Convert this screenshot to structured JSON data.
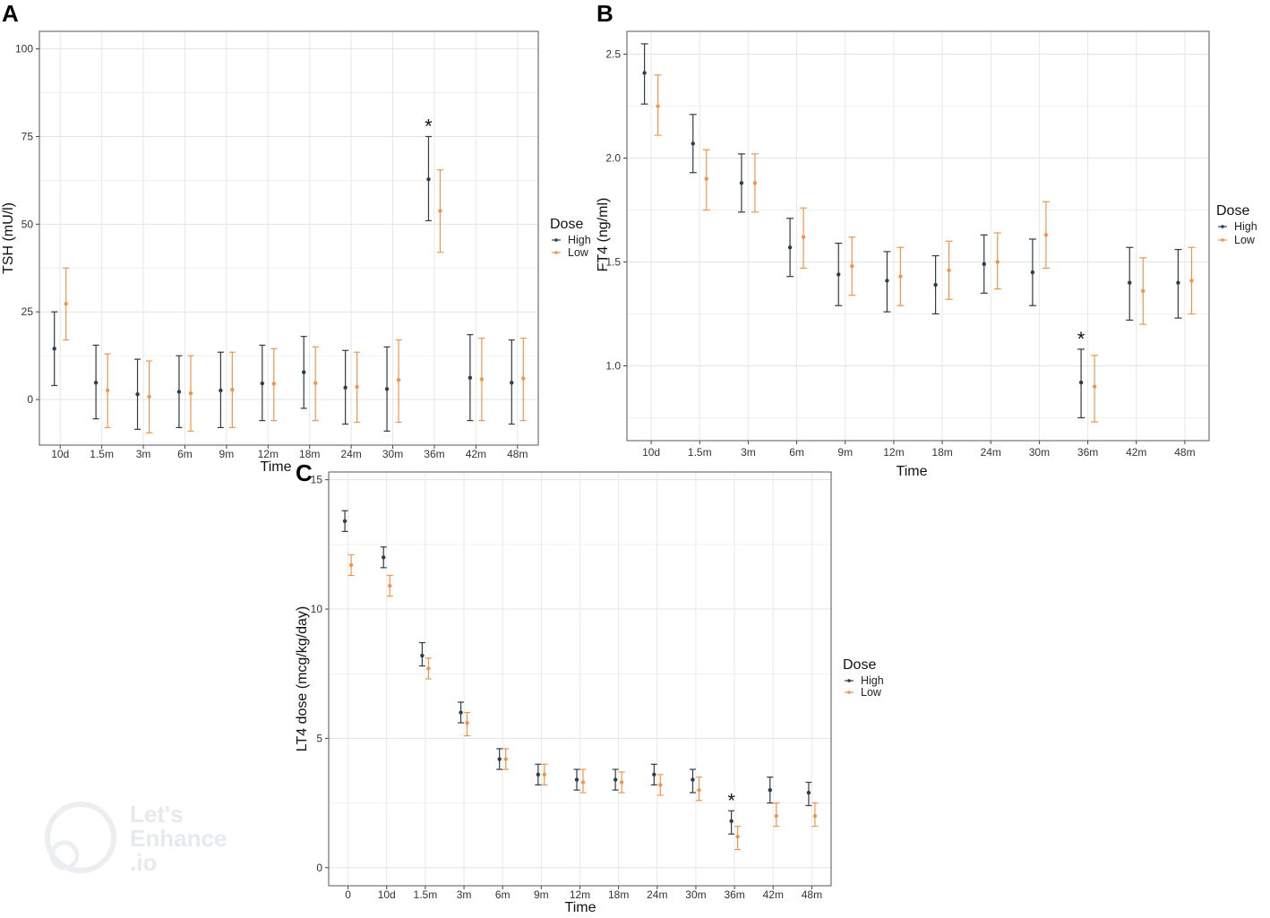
{
  "watermark": {
    "line1": "Let's",
    "line2": "Enhance",
    "line3": ".io"
  },
  "chart_data": [
    {
      "panel": "A",
      "type": "errorbar",
      "xlabel": "Time",
      "ylabel": "TSH (mU/l)",
      "ylim": [
        -13,
        105
      ],
      "yticks": [
        0,
        25,
        50,
        75,
        100
      ],
      "categories": [
        "10d",
        "1.5m",
        "3m",
        "6m",
        "9m",
        "12m",
        "18m",
        "24m",
        "30m",
        "36m",
        "42m",
        "48m"
      ],
      "legend": {
        "title": "Dose",
        "position": "right"
      },
      "annotation": {
        "text": "*",
        "category": "36m"
      },
      "series": [
        {
          "name": "High",
          "color": "#2e3d4a",
          "values": [
            14.5,
            4.8,
            1.5,
            2.2,
            2.6,
            4.6,
            7.8,
            3.4,
            3.0,
            62.8,
            6.2,
            4.8
          ],
          "lower": [
            4.0,
            -5.5,
            -8.5,
            -8.0,
            -8.0,
            -6.0,
            -2.5,
            -7.0,
            -9.0,
            51.0,
            -6.0,
            -7.0
          ],
          "upper": [
            25.0,
            15.5,
            11.5,
            12.5,
            13.5,
            15.5,
            18.0,
            14.0,
            15.0,
            75.0,
            18.5,
            17.0
          ]
        },
        {
          "name": "Low",
          "color": "#f0964a",
          "values": [
            27.3,
            2.6,
            0.8,
            1.8,
            2.8,
            4.5,
            4.7,
            3.6,
            5.6,
            53.8,
            5.8,
            6.0
          ],
          "lower": [
            17.0,
            -8.0,
            -9.5,
            -9.0,
            -8.0,
            -6.0,
            -6.0,
            -6.5,
            -6.5,
            42.0,
            -6.0,
            -6.0
          ],
          "upper": [
            37.5,
            13.0,
            11.0,
            12.5,
            13.5,
            14.5,
            15.0,
            13.5,
            17.0,
            65.5,
            17.5,
            17.5
          ]
        }
      ]
    },
    {
      "panel": "B",
      "type": "errorbar",
      "xlabel": "Time",
      "ylabel": "FT4 (ng/ml)",
      "ylim": [
        0.64,
        2.61
      ],
      "yticks": [
        1.0,
        1.5,
        2.0,
        2.5
      ],
      "ytick_labels": [
        "1.0",
        "1.5",
        "2.0",
        "2.5"
      ],
      "categories": [
        "10d",
        "1.5m",
        "3m",
        "6m",
        "9m",
        "12m",
        "18m",
        "24m",
        "30m",
        "36m",
        "42m",
        "48m"
      ],
      "legend": {
        "title": "Dose",
        "position": "right"
      },
      "annotation": {
        "text": "*",
        "category": "36m"
      },
      "series": [
        {
          "name": "High",
          "color": "#2e3d4a",
          "values": [
            2.41,
            2.07,
            1.88,
            1.57,
            1.44,
            1.41,
            1.39,
            1.49,
            1.45,
            0.92,
            1.4,
            1.4
          ],
          "lower": [
            2.26,
            1.93,
            1.74,
            1.43,
            1.29,
            1.26,
            1.25,
            1.35,
            1.29,
            0.75,
            1.22,
            1.23
          ],
          "upper": [
            2.55,
            2.21,
            2.02,
            1.71,
            1.59,
            1.55,
            1.53,
            1.63,
            1.61,
            1.08,
            1.57,
            1.56
          ]
        },
        {
          "name": "Low",
          "color": "#f0964a",
          "values": [
            2.25,
            1.9,
            1.88,
            1.62,
            1.48,
            1.43,
            1.46,
            1.5,
            1.63,
            0.9,
            1.36,
            1.41
          ],
          "lower": [
            2.11,
            1.75,
            1.74,
            1.47,
            1.34,
            1.29,
            1.32,
            1.37,
            1.47,
            0.73,
            1.2,
            1.25
          ],
          "upper": [
            2.4,
            2.04,
            2.02,
            1.76,
            1.62,
            1.57,
            1.6,
            1.64,
            1.79,
            1.05,
            1.52,
            1.57
          ]
        }
      ]
    },
    {
      "panel": "C",
      "type": "errorbar",
      "xlabel": "Time",
      "ylabel": "LT4 dose (mcg/kg/day)",
      "ylim": [
        -0.7,
        15.3
      ],
      "yticks": [
        0,
        5,
        10,
        15
      ],
      "categories": [
        "0",
        "10d",
        "1.5m",
        "3m",
        "6m",
        "9m",
        "12m",
        "18m",
        "24m",
        "30m",
        "36m",
        "42m",
        "48m"
      ],
      "legend": {
        "title": "Dose",
        "position": "right"
      },
      "annotation": {
        "text": "*",
        "category": "36m"
      },
      "series": [
        {
          "name": "High",
          "color": "#2e3d4a",
          "values": [
            13.4,
            12.0,
            8.2,
            6.0,
            4.2,
            3.6,
            3.4,
            3.4,
            3.6,
            3.4,
            1.8,
            3.0,
            2.9
          ],
          "lower": [
            13.0,
            11.6,
            7.8,
            5.6,
            3.8,
            3.2,
            3.0,
            3.0,
            3.2,
            2.9,
            1.3,
            2.5,
            2.4
          ],
          "upper": [
            13.8,
            12.4,
            8.7,
            6.4,
            4.6,
            4.0,
            3.8,
            3.8,
            4.0,
            3.8,
            2.2,
            3.5,
            3.3
          ]
        },
        {
          "name": "Low",
          "color": "#f0964a",
          "values": [
            11.7,
            10.9,
            7.7,
            5.6,
            4.2,
            3.6,
            3.3,
            3.3,
            3.2,
            3.0,
            1.2,
            2.0,
            2.0
          ],
          "lower": [
            11.3,
            10.5,
            7.3,
            5.1,
            3.8,
            3.2,
            2.9,
            2.9,
            2.8,
            2.6,
            0.7,
            1.6,
            1.6
          ],
          "upper": [
            12.1,
            11.3,
            8.1,
            6.0,
            4.6,
            4.0,
            3.8,
            3.7,
            3.6,
            3.5,
            1.6,
            2.5,
            2.5
          ]
        }
      ]
    }
  ]
}
